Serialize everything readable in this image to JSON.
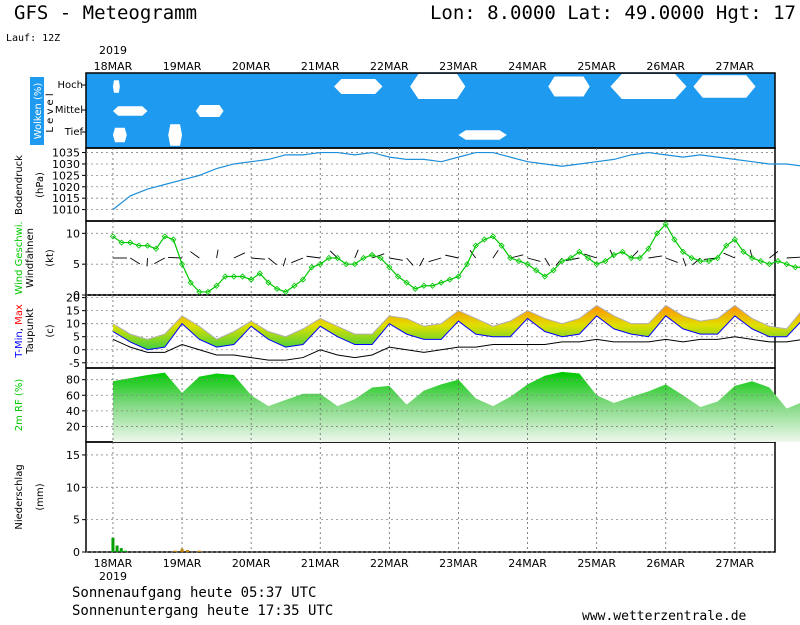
{
  "header": {
    "title": "GFS - Meteogramm",
    "coords": "Lon: 8.0000  Lat: 49.0000  Hgt: 17",
    "run": "Lauf: 12Z"
  },
  "footer": {
    "sunrise": "Sonnenaufgang heute 05:37 UTC",
    "sunset": "Sonnenuntergang heute 17:35 UTC",
    "site": "www.wetterzentrale.de"
  },
  "colors": {
    "cloud_bg": "#1e9bf0",
    "pressure": "#1e8fd8",
    "wind": "#00c800",
    "tmin": "#0000ff",
    "tmax": "#ff0000",
    "rh_top": "#00c800",
    "precip": "#00a000"
  },
  "chart_data": [
    {
      "type": "area",
      "panel": "clouds",
      "ylabel_parts": [
        "Wolken",
        "(%)"
      ],
      "levels": [
        "Hoch",
        "Mittel",
        "Tief"
      ],
      "level_axis": "L e v e l",
      "year_top": "2019",
      "dates": [
        "18MAR",
        "19MAR",
        "20MAR",
        "21MAR",
        "22MAR",
        "23MAR",
        "24MAR",
        "25MAR",
        "26MAR",
        "27MAR"
      ],
      "note": "",
      "clear_spots": [
        {
          "level": "Hoch",
          "t": [
            0.0,
            0.1
          ],
          "depth": 0.5
        },
        {
          "level": "Hoch",
          "t": [
            3.2,
            3.9
          ],
          "depth": 0.6
        },
        {
          "level": "Hoch",
          "t": [
            4.3,
            5.1
          ],
          "depth": 1.0
        },
        {
          "level": "Hoch",
          "t": [
            6.3,
            6.9
          ],
          "depth": 0.8
        },
        {
          "level": "Hoch",
          "t": [
            7.2,
            8.3
          ],
          "depth": 1.0
        },
        {
          "level": "Hoch",
          "t": [
            8.4,
            9.3
          ],
          "depth": 0.9
        },
        {
          "level": "Mittel",
          "t": [
            0.0,
            0.5
          ],
          "depth": 0.4
        },
        {
          "level": "Mittel",
          "t": [
            1.2,
            1.6
          ],
          "depth": 0.5
        },
        {
          "level": "Tief",
          "t": [
            0.0,
            0.2
          ],
          "depth": 0.6
        },
        {
          "level": "Tief",
          "t": [
            0.8,
            1.0
          ],
          "depth": 0.9
        },
        {
          "level": "Tief",
          "t": [
            5.0,
            5.7
          ],
          "depth": 0.4
        }
      ]
    },
    {
      "type": "line",
      "panel": "pressure",
      "ylabel": "Bodendruck",
      "unit": "(hPa)",
      "yticks": [
        1010,
        1015,
        1020,
        1025,
        1030,
        1035
      ],
      "ylim": [
        1005,
        1037
      ],
      "t": [
        0,
        0.25,
        0.5,
        0.75,
        1.0,
        1.25,
        1.5,
        1.75,
        2.0,
        2.25,
        2.5,
        2.75,
        3.0,
        3.25,
        3.5,
        3.75,
        4.0,
        4.25,
        4.5,
        4.75,
        5.0,
        5.25,
        5.5,
        5.75,
        6.0,
        6.25,
        6.5,
        6.75,
        7.0,
        7.25,
        7.5,
        7.75,
        8.0,
        8.25,
        8.5,
        8.75,
        9.0,
        9.25,
        9.5,
        9.75,
        10.0,
        10.25,
        10.5,
        10.75
      ],
      "values": [
        1010,
        1016,
        1019,
        1021,
        1023,
        1025,
        1028,
        1030,
        1031,
        1032,
        1034,
        1034,
        1035,
        1035,
        1034,
        1035,
        1033,
        1032,
        1032,
        1031,
        1033,
        1035,
        1035,
        1033,
        1031,
        1030,
        1029,
        1030,
        1031,
        1032,
        1034,
        1035,
        1034,
        1033,
        1034,
        1033,
        1032,
        1031,
        1030,
        1030,
        1029,
        1028,
        1027,
        1025
      ]
    },
    {
      "type": "line",
      "panel": "wind",
      "ylabel_parts": [
        "Wind Geschwi.",
        "Windfahnen"
      ],
      "unit": "(kt)",
      "yticks": [
        0,
        5,
        10
      ],
      "ylim": [
        0,
        12
      ],
      "t": [
        0,
        0.125,
        0.25,
        0.375,
        0.5,
        0.625,
        0.75,
        0.875,
        1.0,
        1.125,
        1.25,
        1.375,
        1.5,
        1.625,
        1.75,
        1.875,
        2.0,
        2.125,
        2.25,
        2.375,
        2.5,
        2.625,
        2.75,
        2.875,
        3.0,
        3.125,
        3.25,
        3.375,
        3.5,
        3.625,
        3.75,
        3.875,
        4.0,
        4.125,
        4.25,
        4.375,
        4.5,
        4.625,
        4.75,
        4.875,
        5.0,
        5.125,
        5.25,
        5.375,
        5.5,
        5.625,
        5.75,
        5.875,
        6.0,
        6.125,
        6.25,
        6.375,
        6.5,
        6.625,
        6.75,
        6.875,
        7.0,
        7.125,
        7.25,
        7.375,
        7.5,
        7.625,
        7.75,
        7.875,
        8.0,
        8.125,
        8.25,
        8.375,
        8.5,
        8.625,
        8.75,
        8.875,
        9.0,
        9.125,
        9.25,
        9.375,
        9.5,
        9.625,
        9.75,
        9.875,
        10.0,
        10.125,
        10.25,
        10.375,
        10.5,
        10.625,
        10.75
      ],
      "values": [
        9.5,
        8.5,
        8.5,
        8.0,
        8.0,
        7.5,
        9.5,
        9.0,
        5.0,
        2.0,
        0.5,
        0.5,
        1.5,
        3.0,
        3.0,
        3.0,
        2.5,
        3.5,
        2.0,
        1.0,
        0.5,
        1.5,
        2.5,
        4.5,
        5.0,
        6.0,
        6.0,
        5.0,
        5.0,
        6.0,
        6.5,
        6.0,
        4.5,
        3.0,
        2.0,
        1.0,
        1.5,
        1.5,
        2.0,
        2.5,
        3.0,
        5.0,
        8.0,
        9.0,
        9.5,
        8.0,
        6.0,
        5.5,
        5.0,
        4.0,
        3.0,
        4.0,
        5.5,
        6.0,
        7.0,
        6.0,
        5.0,
        5.5,
        6.5,
        7.0,
        6.0,
        6.0,
        7.5,
        10.0,
        11.5,
        9.0,
        7.0,
        6.0,
        5.5,
        5.5,
        6.0,
        8.0,
        9.0,
        7.0,
        6.0,
        5.5,
        5.0,
        5.5,
        5.0,
        4.5,
        4.5,
        5.0,
        5.0,
        4.5,
        4.5,
        4.0,
        4.5
      ]
    },
    {
      "type": "area",
      "panel": "temperature",
      "ylabel_parts": [
        "T-Min",
        ", ",
        "Max",
        "Taupunkt"
      ],
      "unit": "(c)",
      "yticks": [
        -5,
        0,
        5,
        10,
        15,
        20
      ],
      "ylim": [
        -7,
        21
      ],
      "t": [
        0,
        0.25,
        0.5,
        0.75,
        1.0,
        1.25,
        1.5,
        1.75,
        2.0,
        2.25,
        2.5,
        2.75,
        3.0,
        3.25,
        3.5,
        3.75,
        4.0,
        4.25,
        4.5,
        4.75,
        5.0,
        5.25,
        5.5,
        5.75,
        6.0,
        6.25,
        6.5,
        6.75,
        7.0,
        7.25,
        7.5,
        7.75,
        8.0,
        8.25,
        8.5,
        8.75,
        9.0,
        9.25,
        9.5,
        9.75,
        10.0,
        10.25,
        10.5,
        10.75
      ],
      "tmax": [
        10,
        6,
        4,
        6,
        13,
        9,
        4,
        7,
        11,
        7,
        5,
        8,
        12,
        9,
        6,
        6,
        13,
        12,
        9,
        10,
        15,
        12,
        9,
        11,
        15,
        12,
        10,
        12,
        17,
        13,
        10,
        10,
        17,
        13,
        11,
        12,
        17,
        12,
        9,
        8,
        16,
        11,
        8,
        8
      ],
      "tmin": [
        7,
        3,
        0,
        1,
        10,
        4,
        1,
        2,
        9,
        4,
        1,
        2,
        9,
        5,
        2,
        2,
        10,
        6,
        4,
        4,
        11,
        6,
        5,
        5,
        12,
        7,
        5,
        6,
        13,
        8,
        6,
        5,
        13,
        8,
        6,
        6,
        13,
        8,
        5,
        5,
        12,
        7,
        5,
        5
      ],
      "dewpoint": [
        4,
        1,
        -1,
        -1,
        2,
        0,
        -2,
        -2,
        -3,
        -4,
        -4,
        -3,
        0,
        -2,
        -3,
        -2,
        1,
        0,
        -1,
        0,
        1,
        1,
        2,
        2,
        2,
        2,
        3,
        3,
        4,
        3,
        3,
        3,
        4,
        3,
        4,
        4,
        5,
        4,
        3,
        3,
        4,
        3,
        2,
        2
      ]
    },
    {
      "type": "area",
      "panel": "humidity",
      "ylabel": "2m RF (%)",
      "yticks": [
        20,
        40,
        60,
        80
      ],
      "ylim": [
        0,
        95
      ],
      "t": [
        0,
        0.25,
        0.5,
        0.75,
        1.0,
        1.25,
        1.5,
        1.75,
        2.0,
        2.25,
        2.5,
        2.75,
        3.0,
        3.25,
        3.5,
        3.75,
        4.0,
        4.25,
        4.5,
        4.75,
        5.0,
        5.25,
        5.5,
        5.75,
        6.0,
        6.25,
        6.5,
        6.75,
        7.0,
        7.25,
        7.5,
        7.75,
        8.0,
        8.25,
        8.5,
        8.75,
        9.0,
        9.25,
        9.5,
        9.75,
        10.0,
        10.25,
        10.5,
        10.75
      ],
      "values": [
        78,
        82,
        86,
        89,
        63,
        84,
        88,
        86,
        60,
        46,
        54,
        62,
        62,
        46,
        55,
        70,
        72,
        48,
        66,
        74,
        80,
        56,
        46,
        58,
        74,
        85,
        90,
        88,
        60,
        50,
        58,
        65,
        74,
        60,
        45,
        52,
        72,
        78,
        70,
        43,
        52,
        64,
        68,
        40
      ]
    },
    {
      "type": "bar",
      "panel": "precipitation",
      "ylabel": "Niederschlag",
      "unit": "(mm)",
      "yticks": [
        0,
        5,
        10,
        15
      ],
      "ylim": [
        0,
        17
      ],
      "year_bottom": "2019",
      "t": [
        0.0,
        0.06,
        0.12,
        0.18,
        0.9,
        1.0,
        1.08,
        1.25
      ],
      "values": [
        2.2,
        1.0,
        0.6,
        0.2,
        0.2,
        0.5,
        0.3,
        0.2
      ]
    }
  ]
}
